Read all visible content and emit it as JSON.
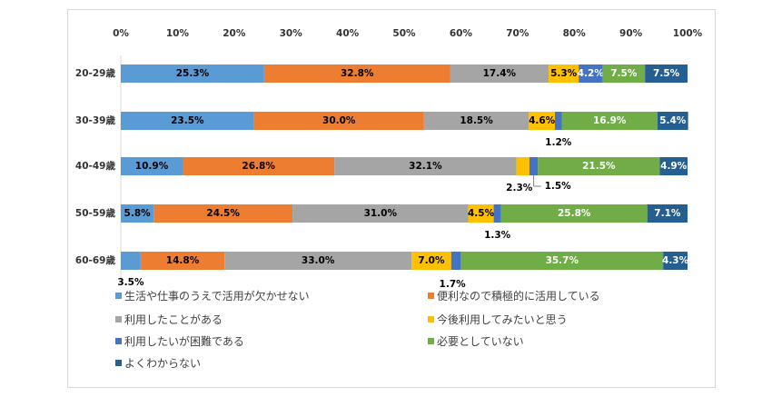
{
  "chart_data": {
    "type": "bar",
    "orientation": "horizontal",
    "stacked": true,
    "percent": true,
    "title": "",
    "xlabel": "",
    "ylabel": "",
    "xlim": [
      0,
      100
    ],
    "x_ticks": [
      "0%",
      "10%",
      "20%",
      "30%",
      "40%",
      "50%",
      "60%",
      "70%",
      "80%",
      "90%",
      "100%"
    ],
    "x_axis_position": "top",
    "grid": false,
    "legend_position": "bottom",
    "categories": [
      "20-29歳",
      "30-39歳",
      "40-49歳",
      "50-59歳",
      "60-69歳"
    ],
    "series": [
      {
        "name": "生活や仕事のうえで活用が欠かせない",
        "color": "#5B9BD5",
        "values": [
          25.3,
          23.5,
          10.9,
          5.8,
          3.5
        ]
      },
      {
        "name": "便利なので積極的に活用している",
        "color": "#ED7D31",
        "values": [
          32.8,
          30.0,
          26.8,
          24.5,
          14.8
        ]
      },
      {
        "name": "利用したことがある",
        "color": "#A5A5A5",
        "values": [
          17.4,
          18.5,
          32.1,
          31.0,
          33.0
        ]
      },
      {
        "name": "今後利用してみたいと思う",
        "color": "#FFC000",
        "values": [
          5.3,
          4.6,
          2.3,
          4.5,
          7.0
        ]
      },
      {
        "name": "利用したいが困難である",
        "color": "#4472C4",
        "values": [
          4.2,
          1.2,
          1.5,
          1.3,
          1.7
        ]
      },
      {
        "name": "必要としていない",
        "color": "#70AD47",
        "values": [
          7.5,
          16.9,
          21.5,
          25.8,
          35.7
        ]
      },
      {
        "name": "よくわからない",
        "color": "#255E91",
        "values": [
          7.5,
          5.4,
          4.9,
          7.1,
          4.3
        ]
      }
    ],
    "labels": [
      [
        "25.3%",
        "32.8%",
        "17.4%",
        "5.3%",
        "4.2%",
        "7.5%",
        "7.5%"
      ],
      [
        "23.5%",
        "30.0%",
        "18.5%",
        "4.6%",
        "1.2%",
        "16.9%",
        "5.4%"
      ],
      [
        "10.9%",
        "26.8%",
        "32.1%",
        "2.3%",
        "1.5%",
        "21.5%",
        "4.9%"
      ],
      [
        "5.8%",
        "24.5%",
        "31.0%",
        "4.5%",
        "1.3%",
        "25.8%",
        "7.1%"
      ],
      [
        "3.5%",
        "14.8%",
        "33.0%",
        "7.0%",
        "1.7%",
        "35.7%",
        "4.3%"
      ]
    ]
  }
}
